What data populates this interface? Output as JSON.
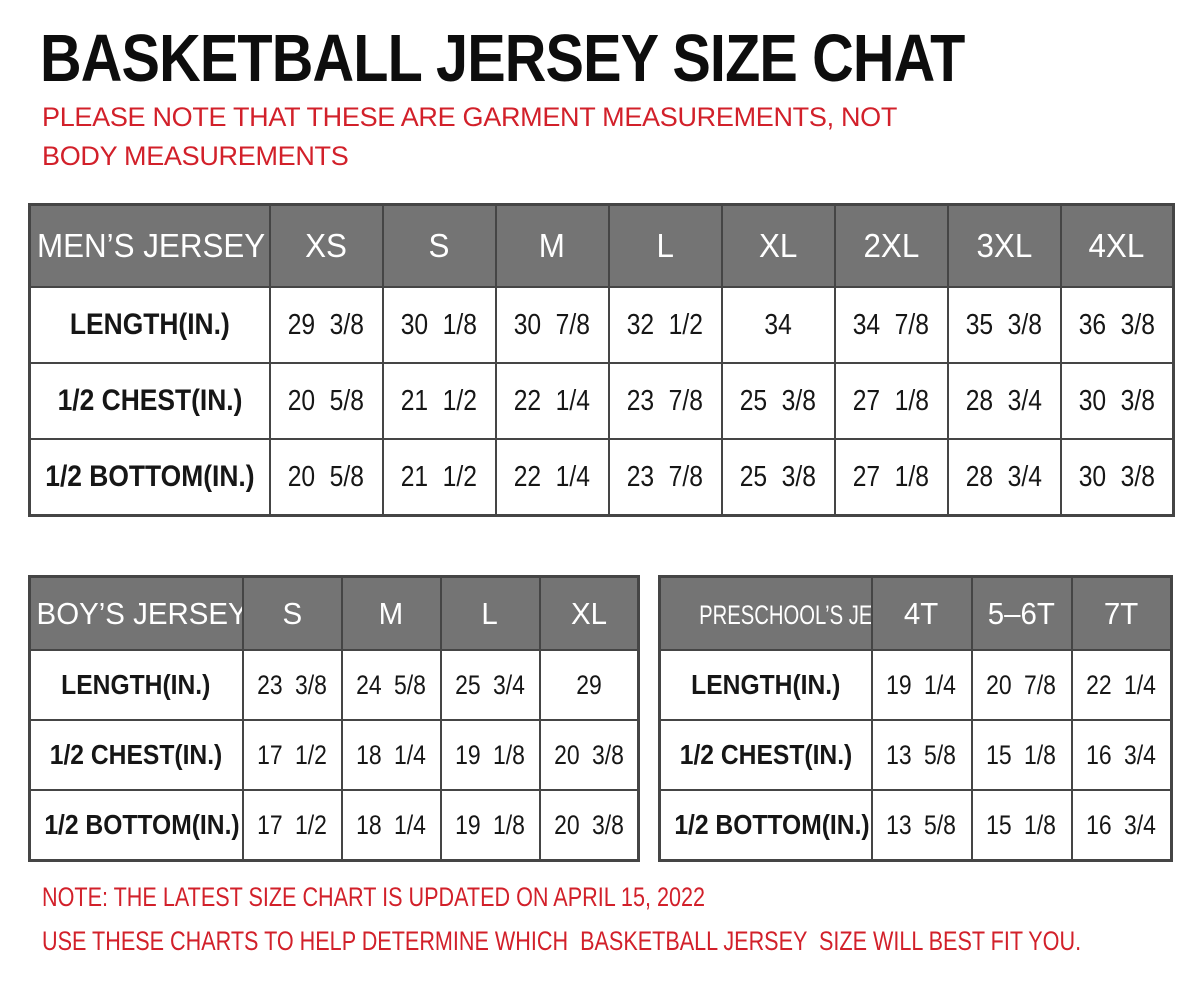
{
  "page": {
    "title": "BASKETBALL JERSEY SIZE CHAT",
    "disclaimer": "PLEASE NOTE THAT THESE ARE GARMENT MEASUREMENTS, NOT BODY MEASUREMENTS",
    "notes": {
      "line1": "NOTE: THE LATEST SIZE CHART IS UPDATED ON APRIL 15, 2022",
      "line2": "USE THESE CHARTS TO HELP DETERMINE WHICH  BASKETBALL JERSEY  SIZE WILL BEST FIT YOU."
    },
    "colors": {
      "accent_red": "#d2202a",
      "header_gray": "#747474",
      "border_dark": "#454545",
      "text_black": "#161616"
    }
  },
  "tables": {
    "mens": {
      "label": "MEN’S JERSEY",
      "sizes": [
        "XS",
        "S",
        "M",
        "L",
        "XL",
        "2XL",
        "3XL",
        "4XL"
      ],
      "rows": [
        {
          "label": "LENGTH(IN.)",
          "values": [
            "29 3/8",
            "30 1/8",
            "30 7/8",
            "32 1/2",
            "34",
            "34 7/8",
            "35 3/8",
            "36 3/8"
          ]
        },
        {
          "label": "1/2 CHEST(IN.)",
          "values": [
            "20 5/8",
            "21 1/2",
            "22 1/4",
            "23 7/8",
            "25 3/8",
            "27 1/8",
            "28 3/4",
            "30 3/8"
          ]
        },
        {
          "label": "1/2 BOTTOM(IN.)",
          "values": [
            "20 5/8",
            "21 1/2",
            "22 1/4",
            "23 7/8",
            "25 3/8",
            "27 1/8",
            "28 3/4",
            "30 3/8"
          ]
        }
      ]
    },
    "boys": {
      "label": "BOY’S JERSEY",
      "sizes": [
        "S",
        "M",
        "L",
        "XL"
      ],
      "rows": [
        {
          "label": "LENGTH(IN.)",
          "values": [
            "23 3/8",
            "24 5/8",
            "25 3/4",
            "29"
          ]
        },
        {
          "label": "1/2 CHEST(IN.)",
          "values": [
            "17 1/2",
            "18 1/4",
            "19 1/8",
            "20 3/8"
          ]
        },
        {
          "label": "1/2 BOTTOM(IN.)",
          "values": [
            "17 1/2",
            "18 1/4",
            "19 1/8",
            "20 3/8"
          ]
        }
      ]
    },
    "preschools": {
      "label": "PRESCHOOL’S JERSEY",
      "sizes": [
        "4T",
        "5–6T",
        "7T"
      ],
      "rows": [
        {
          "label": "LENGTH(IN.)",
          "values": [
            "19 1/4",
            "20 7/8",
            "22 1/4"
          ]
        },
        {
          "label": "1/2 CHEST(IN.)",
          "values": [
            "13 5/8",
            "15 1/8",
            "16 3/4"
          ]
        },
        {
          "label": "1/2 BOTTOM(IN.)",
          "values": [
            "13 5/8",
            "15 1/8",
            "16 3/4"
          ]
        }
      ]
    }
  }
}
